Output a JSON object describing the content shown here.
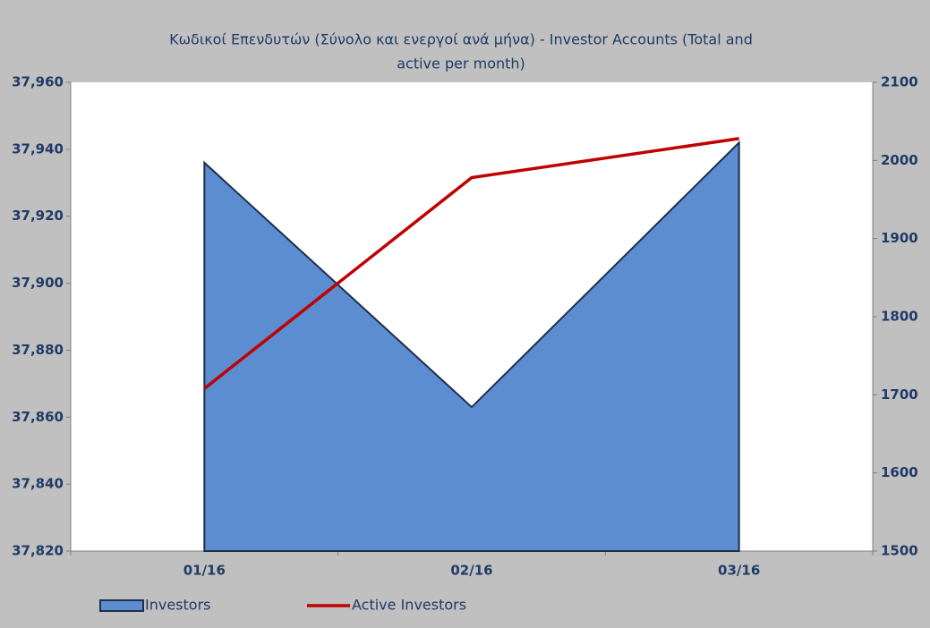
{
  "chart_data": {
    "type": "combo",
    "title": "Κωδικοί Επενδυτών (Σύνολο και ενεργοί ανά μήνα) - Investor Accounts (Total and active per month)",
    "categories": [
      "01/16",
      "02/16",
      "03/16"
    ],
    "series": [
      {
        "name": "Investors",
        "type": "area",
        "color": "#5b8dd0",
        "values": [
          37936,
          37863,
          37942
        ]
      },
      {
        "name": "Active Investors",
        "type": "line",
        "axis": "y2",
        "color": "#c00000",
        "values": [
          1708,
          1978,
          2028
        ]
      }
    ],
    "ylim": [
      37820,
      37960
    ],
    "yticks": [
      {
        "value": 37820,
        "label": "37,820"
      },
      {
        "value": 37840,
        "label": "37,840"
      },
      {
        "value": 37860,
        "label": "37,860"
      },
      {
        "value": 37880,
        "label": "37,880"
      },
      {
        "value": 37900,
        "label": "37,900"
      },
      {
        "value": 37920,
        "label": "37,920"
      },
      {
        "value": 37940,
        "label": "37,940"
      },
      {
        "value": 37960,
        "label": "37,960"
      }
    ],
    "y2lim": [
      1500,
      2100
    ],
    "y2ticks": [
      1500,
      1600,
      1700,
      1800,
      1900,
      2000,
      2100
    ],
    "legend": "bottom"
  }
}
